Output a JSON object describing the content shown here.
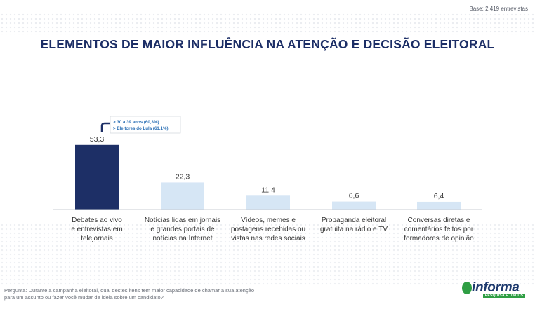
{
  "header": {
    "base_note": "Base: 2.419  entrevistas",
    "title": "ELEMENTOS DE MAIOR INFLUÊNCIA NA ATENÇÃO E DECISÃO ELEITORAL"
  },
  "annotation": {
    "lines": [
      "> 30 a 39 anos (60,3%)",
      "> Eleitores do Lula (61,1%)"
    ]
  },
  "chart_data": {
    "type": "bar",
    "title": "ELEMENTOS DE MAIOR INFLUÊNCIA NA ATENÇÃO E DECISÃO ELEITORAL",
    "xlabel": "",
    "ylabel": "",
    "ylim": [
      0,
      60
    ],
    "grid": false,
    "categories": [
      [
        "Debates ao vivo",
        "e entrevistas em",
        "telejornais"
      ],
      [
        "Notícias lidas em jornais",
        "e grandes portais de",
        "notícias na Internet"
      ],
      [
        "Vídeos, memes e",
        "postagens recebidas ou",
        "vistas nas redes sociais"
      ],
      [
        "Propaganda eleitoral",
        "gratuita na rádio e TV"
      ],
      [
        "Conversas diretas e",
        "comentários feitos por",
        "formadores de opinião"
      ]
    ],
    "values": [
      53.3,
      22.3,
      11.4,
      6.6,
      6.4
    ],
    "value_labels": [
      "53,3",
      "22,3",
      "11,4",
      "6,6",
      "6,4"
    ],
    "colors": [
      "#1d2f66",
      "#d6e6f5",
      "#d6e6f5",
      "#d6e6f5",
      "#d6e6f5"
    ]
  },
  "footer": {
    "question": "Pergunta: Durante a campanha eleitoral, qual destes itens tem maior capacidade de chamar a sua atenção para um assunto ou fazer você mudar de ideia sobre um candidato?",
    "logo_text": "informa",
    "logo_sub": "PESQUISA E DADOS"
  }
}
